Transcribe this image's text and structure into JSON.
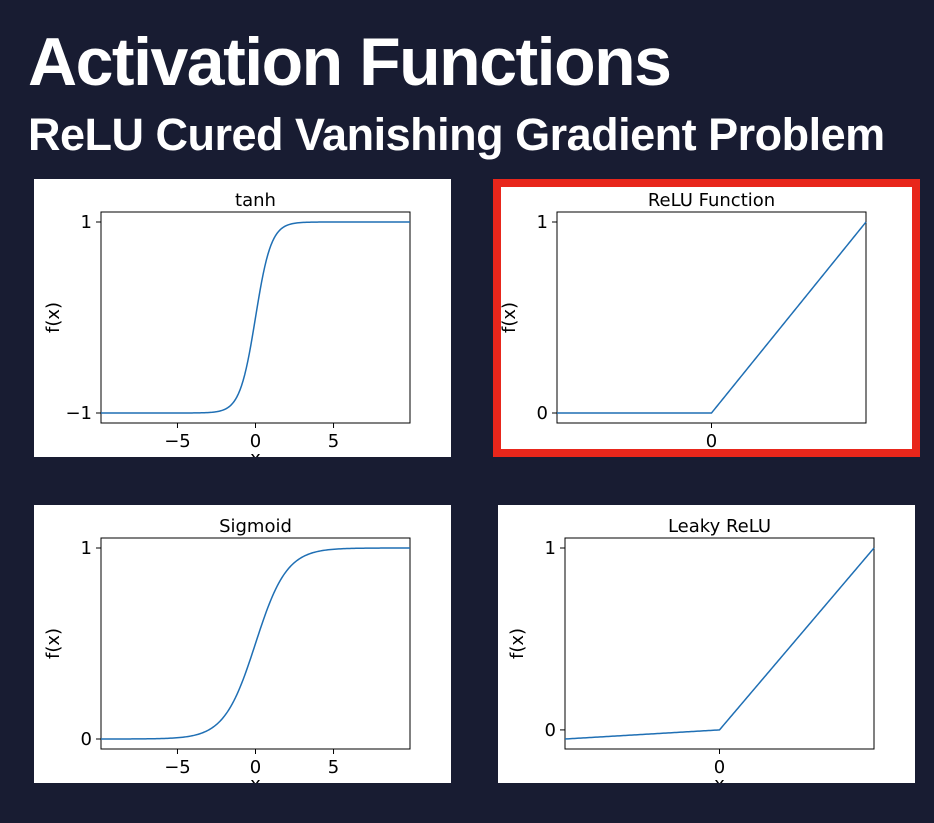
{
  "header": {
    "title": "Activation Functions",
    "subtitle": "ReLU Cured Vanishing Gradient Problem"
  },
  "colors": {
    "background": "#181c32",
    "highlight": "#e8261b",
    "line": "#1f6fb4"
  },
  "chart_data": [
    {
      "type": "line",
      "title": "tanh",
      "xlabel": "x",
      "ylabel": "f(x)",
      "function": "tanh",
      "xlim": [
        -9.9,
        9.9
      ],
      "ylim": [
        -1,
        1
      ],
      "xticks": [
        {
          "value": -5,
          "label": "−5"
        },
        {
          "value": 0,
          "label": "0"
        },
        {
          "value": 5,
          "label": "5"
        }
      ],
      "yticks": [
        {
          "value": -1,
          "label": "−1"
        },
        {
          "value": 1,
          "label": "1"
        }
      ],
      "highlighted": false
    },
    {
      "type": "line",
      "title": "ReLU Function",
      "xlabel": "",
      "ylabel": "f(x)",
      "function": "relu",
      "xlim": [
        -1,
        1
      ],
      "ylim": [
        0,
        1
      ],
      "xticks": [
        {
          "value": 0,
          "label": "0"
        }
      ],
      "yticks": [
        {
          "value": 0,
          "label": "0"
        },
        {
          "value": 1,
          "label": "1"
        }
      ],
      "highlighted": true
    },
    {
      "type": "line",
      "title": "Sigmoid",
      "xlabel": "x",
      "ylabel": "f(x)",
      "function": "sigmoid",
      "xlim": [
        -9.9,
        9.9
      ],
      "ylim": [
        0,
        1
      ],
      "xticks": [
        {
          "value": -5,
          "label": "−5"
        },
        {
          "value": 0,
          "label": "0"
        },
        {
          "value": 5,
          "label": "5"
        }
      ],
      "yticks": [
        {
          "value": 0,
          "label": "0"
        },
        {
          "value": 1,
          "label": "1"
        }
      ],
      "highlighted": false
    },
    {
      "type": "line",
      "title": "Leaky ReLU",
      "xlabel": "x",
      "ylabel": "f(x)",
      "function": "leaky_relu",
      "leak": 0.05,
      "xlim": [
        -1,
        1
      ],
      "ylim": [
        -0.05,
        1
      ],
      "xticks": [
        {
          "value": 0,
          "label": "0"
        }
      ],
      "yticks": [
        {
          "value": 0,
          "label": "0"
        },
        {
          "value": 1,
          "label": "1"
        }
      ],
      "highlighted": false
    }
  ]
}
